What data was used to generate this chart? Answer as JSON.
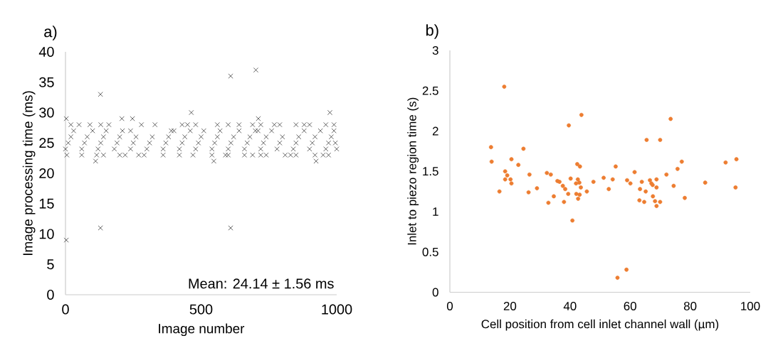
{
  "chart_data": [
    {
      "type": "scatter",
      "title": "a)",
      "xlabel": "Image number",
      "ylabel": "Image processing time (ms)",
      "marker": "cross",
      "xlim": [
        0,
        1000
      ],
      "ylim": [
        0,
        40
      ],
      "xticks": [
        0,
        500,
        1000
      ],
      "yticks": [
        0,
        5,
        10,
        15,
        20,
        25,
        30,
        35,
        40
      ],
      "annotations": [
        "Mean: 24.14 ± 1.56 ms"
      ],
      "series": [
        {
          "color": "#000000",
          "x": [
            3,
            3,
            129,
            129,
            111,
            609,
            609,
            702,
            464,
            975,
            547,
            924,
            711,
            208,
            247,
            20,
            50,
            90,
            130,
            160,
            280,
            330,
            430,
            450,
            480,
            560,
            600,
            640,
            690,
            720,
            770,
            790,
            850,
            880,
            900,
            960,
            990,
            5,
            60,
            115,
            140,
            200,
            220,
            270,
            290,
            360,
            420,
            470,
            540,
            590,
            600,
            660,
            690,
            720,
            740,
            810,
            830,
            850,
            920,
            950,
            970,
            0,
            60,
            120,
            180,
            240,
            300,
            360,
            420,
            480,
            540,
            600,
            660,
            720,
            780,
            840,
            900,
            960,
            1000,
            10,
            70,
            130,
            190,
            250,
            310,
            370,
            430,
            490,
            550,
            610,
            670,
            730,
            790,
            850,
            910,
            970,
            995,
            20,
            80,
            140,
            200,
            260,
            320,
            380,
            440,
            500,
            560,
            620,
            680,
            740,
            800,
            860,
            920,
            980,
            30,
            100,
            150,
            210,
            240,
            390,
            400,
            460,
            510,
            570,
            640,
            700,
            710,
            760,
            880,
            940,
            990
          ],
          "values": [
            9,
            29,
            33,
            11,
            22,
            36,
            11,
            37,
            30,
            30,
            22,
            22,
            29,
            29,
            29,
            28,
            28,
            28,
            28,
            28,
            28,
            28,
            28,
            28,
            28,
            28,
            28,
            28,
            28,
            28,
            28,
            28,
            28,
            28,
            28,
            28,
            28,
            23,
            23,
            23,
            23,
            23,
            23,
            23,
            23,
            23,
            23,
            23,
            23,
            23,
            23,
            23,
            23,
            23,
            23,
            23,
            23,
            23,
            23,
            23,
            23,
            24,
            24,
            24,
            24,
            24,
            24,
            24,
            24,
            24,
            24,
            24,
            24,
            24,
            24,
            24,
            24,
            24,
            24,
            25,
            25,
            25,
            25,
            25,
            25,
            25,
            25,
            25,
            25,
            25,
            25,
            25,
            25,
            25,
            25,
            25,
            25,
            26,
            26,
            26,
            26,
            26,
            26,
            26,
            26,
            26,
            26,
            26,
            26,
            26,
            26,
            26,
            26,
            26,
            27,
            27,
            27,
            27,
            27,
            27,
            27,
            27,
            27,
            27,
            27,
            27,
            27,
            27,
            27,
            27,
            27
          ]
        }
      ]
    },
    {
      "type": "scatter",
      "title": "b)",
      "xlabel": "Cell position from cell inlet channel wall (µm)",
      "ylabel": "Inlet to piezo region time (s)",
      "marker": "circle",
      "xlim": [
        0,
        100
      ],
      "ylim": [
        0,
        3
      ],
      "xticks": [
        0,
        20,
        40,
        60,
        80,
        100
      ],
      "yticks": [
        0,
        0.5,
        1,
        1.5,
        2,
        2.5,
        3
      ],
      "series": [
        {
          "color": "#ed7d31",
          "x": [
            18.1,
            13.7,
            24.5,
            13.9,
            20.5,
            22.8,
            18.4,
            19.1,
            18.4,
            20.2,
            20.5,
            26.5,
            16.5,
            26.2,
            29.0,
            32.3,
            33.6,
            32.8,
            34.6,
            43.8,
            39.6,
            73.5,
            65.5,
            70.0,
            95.4,
            91.8,
            77.2,
            75.8,
            72.1,
            61.5,
            55.2,
            42.4,
            43.3,
            35.8,
            36.5,
            37.6,
            40.2,
            42.6,
            42.0,
            43.1,
            43.6,
            38.4,
            39.4,
            38.0,
            42.1,
            43.2,
            42.7,
            45.6,
            47.8,
            51.2,
            54.2,
            52.9,
            40.8,
            55.8,
            58.8,
            59.0,
            60.1,
            63.9,
            63.3,
            65.2,
            66.6,
            67.1,
            67.5,
            68.8,
            68.8,
            63.1,
            64.7,
            67.6,
            68.3,
            70.0,
            68.8,
            74.5,
            78.2,
            85.0,
            95.1
          ],
          "values": [
            2.55,
            1.8,
            1.78,
            1.62,
            1.65,
            1.58,
            1.5,
            1.45,
            1.4,
            1.4,
            1.35,
            1.46,
            1.25,
            1.24,
            1.29,
            1.48,
            1.46,
            1.11,
            1.19,
            2.2,
            2.07,
            2.15,
            1.89,
            1.89,
            1.65,
            1.61,
            1.62,
            1.53,
            1.46,
            1.49,
            1.56,
            1.59,
            1.56,
            1.38,
            1.37,
            1.32,
            1.41,
            1.4,
            1.35,
            1.36,
            1.3,
            1.28,
            1.22,
            1.12,
            1.22,
            1.21,
            1.16,
            1.25,
            1.37,
            1.42,
            1.4,
            1.28,
            0.89,
            0.18,
            0.28,
            1.39,
            1.35,
            1.37,
            1.28,
            1.25,
            1.39,
            1.35,
            1.33,
            1.4,
            1.3,
            1.14,
            1.12,
            1.19,
            1.13,
            1.12,
            1.07,
            1.32,
            1.17,
            1.36,
            1.3
          ]
        }
      ]
    }
  ]
}
